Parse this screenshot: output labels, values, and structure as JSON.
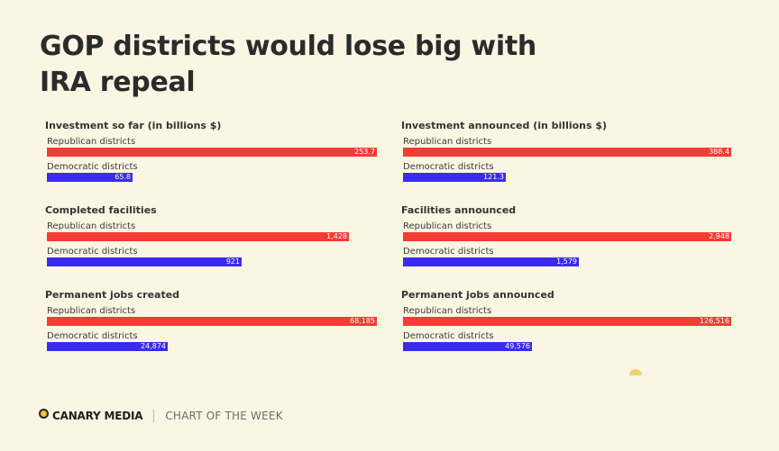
{
  "title": "GOP districts would lose big with IRA repeal",
  "footer": {
    "brand": "CANARY MEDIA",
    "tagline": "CHART OF THE WEEK"
  },
  "colors": {
    "republican": "#f53b35",
    "democratic": "#3a2bf0",
    "background": "#fbf6e4",
    "logo": "#f2c62b"
  },
  "chart_data": [
    {
      "type": "bar",
      "title": "Investment so far (in billions $)",
      "categories": [
        "Republican districts",
        "Democratic districts"
      ],
      "values": [
        253.7,
        65.8
      ],
      "labels": [
        "253.7",
        "65.8"
      ],
      "xlim": [
        0,
        253.7
      ]
    },
    {
      "type": "bar",
      "title": "Investment announced (in billions $)",
      "categories": [
        "Republican districts",
        "Democratic districts"
      ],
      "values": [
        388.4,
        121.3
      ],
      "labels": [
        "388.4",
        "121.3"
      ],
      "xlim": [
        0,
        388.4
      ]
    },
    {
      "type": "bar",
      "title": "Completed facilities",
      "categories": [
        "Republican districts",
        "Democratic districts"
      ],
      "values": [
        1428,
        921
      ],
      "labels": [
        "1,428",
        "921"
      ],
      "xlim": [
        0,
        1560
      ]
    },
    {
      "type": "bar",
      "title": "Facilities announced",
      "categories": [
        "Republican districts",
        "Democratic districts"
      ],
      "values": [
        2948,
        1579
      ],
      "labels": [
        "2,948",
        "1,579"
      ],
      "xlim": [
        0,
        2948
      ]
    },
    {
      "type": "bar",
      "title": "Permanent jobs created",
      "categories": [
        "Republican districts",
        "Democratic districts"
      ],
      "values": [
        68185,
        24874
      ],
      "labels": [
        "68,185",
        "24,874"
      ],
      "xlim": [
        0,
        68185
      ]
    },
    {
      "type": "bar",
      "title": "Permanent jobs announced",
      "categories": [
        "Republican districts",
        "Democratic districts"
      ],
      "values": [
        126516,
        49576
      ],
      "labels": [
        "126,516",
        "49,576"
      ],
      "xlim": [
        0,
        126516
      ]
    }
  ]
}
